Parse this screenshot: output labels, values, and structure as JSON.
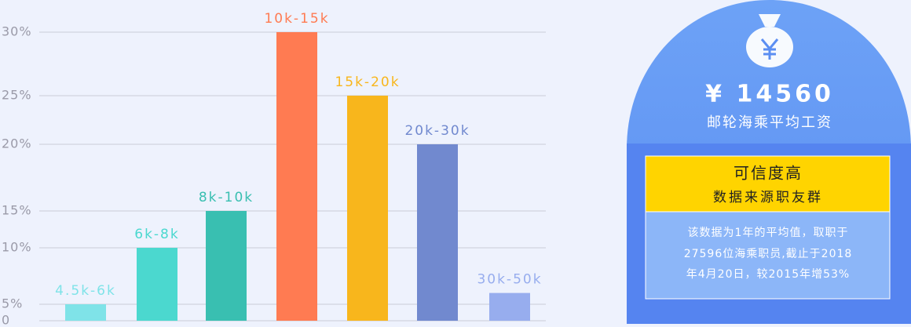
{
  "chart_data": {
    "type": "bar",
    "categories": [
      "4.5k-6k",
      "6k-8k",
      "8k-10k",
      "10k-15k",
      "15k-20k",
      "20k-30k",
      "30k-50k"
    ],
    "values": [
      5,
      10,
      15,
      30,
      25,
      20,
      6
    ],
    "colors": [
      "#7fe3e8",
      "#4bd8cf",
      "#39bfb1",
      "#ff7b52",
      "#f8b61c",
      "#7189cf",
      "#97adee"
    ],
    "ylim": [
      0,
      30
    ],
    "yticks": [
      0,
      {
        "value": 5,
        "label": "5%"
      },
      {
        "value": 10,
        "label": "10%"
      },
      {
        "value": 15,
        "label": "15%"
      },
      {
        "value": 20,
        "label": "20%"
      },
      {
        "value": 25,
        "label": "25%"
      },
      {
        "value": 30,
        "label": "30%"
      }
    ],
    "grid": true
  },
  "panel": {
    "amount": "¥ 14560",
    "amount_label": "邮轮海乘平均工资",
    "badge_title": "可信度高",
    "badge_subtitle": "数据来源职友群",
    "note_lines": [
      "该数据为1年的平均值，取职于",
      "27596位海乘职员,截止于2018",
      "年4月20日，较2015年增53%"
    ]
  }
}
